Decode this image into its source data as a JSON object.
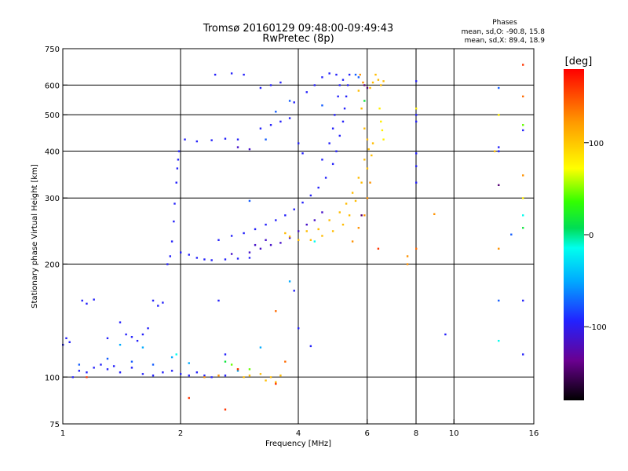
{
  "chart_data": {
    "type": "scatter",
    "title": "Tromsø 20160129 09:48:00-09:49:43",
    "subtitle": "RwPretec (8p)",
    "xlabel": "Frequency [MHz]",
    "ylabel": "Stationary phase Virtual Height [km]",
    "x_scale": "log",
    "y_scale": "log",
    "xlim": [
      1,
      16
    ],
    "ylim": [
      75,
      750
    ],
    "x_ticks": [
      1,
      2,
      4,
      6,
      8,
      10,
      16
    ],
    "x_tick_labels": [
      "1",
      "2",
      "4",
      "6",
      "8",
      "10",
      "16"
    ],
    "x_grid_lines": [
      2,
      4,
      6,
      8,
      10
    ],
    "y_ticks": [
      75,
      100,
      200,
      300,
      400,
      500,
      600,
      750
    ],
    "y_tick_labels": [
      "75",
      "100",
      "200",
      "300",
      "400",
      "500",
      "600",
      "750"
    ],
    "y_grid_lines": [
      100,
      200,
      300,
      400,
      500,
      600
    ],
    "grid": true,
    "info": {
      "heading": "Phases",
      "line_o": "mean, sd,O: -90.8, 15.8",
      "line_x": "mean, sd,X: 89.4, 18.9"
    },
    "colorbar": {
      "label": "[deg]",
      "range": [
        -180,
        180
      ],
      "ticks": [
        100,
        0,
        -100
      ],
      "tick_labels": [
        "100",
        "0",
        "-100"
      ]
    },
    "series": [
      {
        "phase": -95,
        "points": [
          [
            1.0,
            122
          ],
          [
            1.02,
            127
          ],
          [
            1.04,
            124
          ],
          [
            1.06,
            100
          ],
          [
            1.1,
            104
          ],
          [
            1.15,
            103
          ],
          [
            1.2,
            106
          ],
          [
            1.25,
            108
          ],
          [
            1.3,
            105
          ],
          [
            1.35,
            107
          ],
          [
            1.4,
            103
          ],
          [
            1.5,
            106
          ],
          [
            1.6,
            102
          ],
          [
            1.7,
            101
          ],
          [
            1.8,
            103
          ],
          [
            1.9,
            104
          ],
          [
            2.0,
            102
          ],
          [
            2.1,
            101
          ],
          [
            2.2,
            103
          ],
          [
            2.3,
            101
          ],
          [
            2.4,
            100
          ],
          [
            2.6,
            101
          ],
          [
            1.12,
            160
          ],
          [
            1.15,
            157
          ],
          [
            1.2,
            161
          ],
          [
            1.3,
            127
          ],
          [
            1.4,
            140
          ],
          [
            1.45,
            130
          ],
          [
            1.5,
            128
          ],
          [
            1.55,
            125
          ],
          [
            1.6,
            130
          ],
          [
            1.65,
            135
          ],
          [
            1.7,
            160
          ],
          [
            1.75,
            155
          ],
          [
            1.8,
            158
          ],
          [
            1.85,
            200
          ],
          [
            1.88,
            210
          ],
          [
            1.9,
            230
          ],
          [
            1.92,
            260
          ],
          [
            1.93,
            290
          ],
          [
            1.95,
            330
          ],
          [
            1.96,
            360
          ],
          [
            1.97,
            380
          ],
          [
            1.98,
            400
          ],
          [
            2.0,
            215
          ],
          [
            2.1,
            212
          ],
          [
            2.2,
            208
          ],
          [
            2.3,
            206
          ],
          [
            2.4,
            205
          ],
          [
            2.6,
            206
          ],
          [
            2.8,
            207
          ],
          [
            3.0,
            208
          ],
          [
            2.05,
            430
          ],
          [
            2.2,
            425
          ],
          [
            2.4,
            428
          ],
          [
            2.6,
            432
          ],
          [
            2.8,
            430
          ],
          [
            2.45,
            640
          ],
          [
            2.7,
            645
          ],
          [
            2.9,
            640
          ],
          [
            2.5,
            232
          ],
          [
            2.7,
            238
          ],
          [
            2.9,
            242
          ],
          [
            3.1,
            248
          ],
          [
            3.3,
            255
          ],
          [
            3.5,
            262
          ],
          [
            3.7,
            270
          ],
          [
            3.9,
            280
          ],
          [
            4.1,
            292
          ],
          [
            4.3,
            305
          ],
          [
            4.5,
            320
          ],
          [
            4.7,
            340
          ],
          [
            4.9,
            370
          ],
          [
            5.0,
            400
          ],
          [
            5.1,
            440
          ],
          [
            5.2,
            480
          ],
          [
            5.25,
            520
          ],
          [
            5.3,
            560
          ],
          [
            5.35,
            600
          ],
          [
            5.4,
            640
          ],
          [
            3.2,
            590
          ],
          [
            3.4,
            600
          ],
          [
            3.6,
            610
          ],
          [
            3.2,
            460
          ],
          [
            3.4,
            470
          ],
          [
            3.6,
            480
          ],
          [
            3.8,
            490
          ],
          [
            3.9,
            540
          ],
          [
            4.0,
            420
          ],
          [
            4.1,
            395
          ],
          [
            4.2,
            575
          ],
          [
            4.4,
            600
          ],
          [
            4.6,
            630
          ],
          [
            4.8,
            645
          ],
          [
            5.0,
            640
          ],
          [
            5.2,
            620
          ],
          [
            4.6,
            380
          ],
          [
            4.8,
            420
          ],
          [
            4.9,
            460
          ],
          [
            4.95,
            500
          ],
          [
            5.05,
            560
          ],
          [
            5.1,
            600
          ],
          [
            8.0,
            615
          ],
          [
            8.0,
            500
          ],
          [
            8.0,
            480
          ],
          [
            8.0,
            395
          ],
          [
            8.0,
            365
          ],
          [
            8.0,
            330
          ],
          [
            13.0,
            410
          ],
          [
            13.0,
            400
          ],
          [
            15.0,
            455
          ],
          [
            15.0,
            160
          ],
          [
            15.0,
            115
          ],
          [
            9.5,
            130
          ],
          [
            3.9,
            170
          ],
          [
            4.0,
            135
          ],
          [
            4.3,
            121
          ],
          [
            2.6,
            115
          ],
          [
            2.5,
            160
          ]
        ]
      },
      {
        "phase": -115,
        "points": [
          [
            2.7,
            213
          ],
          [
            3.0,
            215
          ],
          [
            3.2,
            220
          ],
          [
            3.4,
            225
          ],
          [
            3.6,
            228
          ],
          [
            3.8,
            235
          ],
          [
            4.0,
            245
          ],
          [
            4.2,
            255
          ],
          [
            4.4,
            262
          ],
          [
            4.6,
            275
          ],
          [
            3.1,
            225
          ],
          [
            3.3,
            232
          ],
          [
            2.8,
            410
          ],
          [
            3.0,
            405
          ]
        ]
      },
      {
        "phase": -75,
        "points": [
          [
            3.0,
            295
          ],
          [
            3.3,
            430
          ],
          [
            3.5,
            510
          ],
          [
            3.8,
            545
          ],
          [
            1.1,
            108
          ],
          [
            1.3,
            112
          ],
          [
            1.5,
            110
          ],
          [
            1.7,
            108
          ],
          [
            5.6,
            640
          ],
          [
            5.7,
            630
          ],
          [
            4.6,
            530
          ],
          [
            13.0,
            590
          ],
          [
            14.0,
            240
          ],
          [
            13.0,
            160
          ]
        ]
      },
      {
        "phase": -50,
        "points": [
          [
            1.9,
            113
          ],
          [
            2.1,
            109
          ],
          [
            1.6,
            120
          ],
          [
            2.8,
            104
          ],
          [
            3.2,
            120
          ],
          [
            1.4,
            122
          ],
          [
            3.8,
            180
          ]
        ]
      },
      {
        "phase": 105,
        "points": [
          [
            3.8,
            237
          ],
          [
            4.0,
            232
          ],
          [
            4.3,
            232
          ],
          [
            4.6,
            238
          ],
          [
            4.9,
            245
          ],
          [
            5.2,
            255
          ],
          [
            5.4,
            270
          ],
          [
            5.6,
            295
          ],
          [
            5.8,
            330
          ],
          [
            6.0,
            360
          ],
          [
            6.15,
            390
          ],
          [
            6.2,
            420
          ],
          [
            3.7,
            242
          ],
          [
            4.2,
            245
          ],
          [
            4.5,
            248
          ],
          [
            4.8,
            262
          ],
          [
            5.1,
            275
          ],
          [
            5.3,
            290
          ],
          [
            5.5,
            310
          ],
          [
            5.7,
            340
          ],
          [
            5.9,
            380
          ],
          [
            6.05,
            405
          ],
          [
            6.3,
            640
          ],
          [
            6.4,
            620
          ],
          [
            6.5,
            600
          ],
          [
            6.6,
            615
          ],
          [
            6.2,
            610
          ],
          [
            6.1,
            590
          ],
          [
            2.9,
            100
          ],
          [
            3.0,
            101
          ],
          [
            3.2,
            102
          ],
          [
            3.4,
            100
          ],
          [
            3.6,
            101
          ],
          [
            3.3,
            98
          ],
          [
            3.5,
            97
          ],
          [
            5.7,
            580
          ],
          [
            5.8,
            520
          ],
          [
            5.9,
            460
          ],
          [
            6.0,
            430
          ],
          [
            12.7,
            400
          ]
        ]
      },
      {
        "phase": 125,
        "points": [
          [
            5.5,
            230
          ],
          [
            5.7,
            250
          ],
          [
            5.9,
            270
          ],
          [
            6.0,
            300
          ],
          [
            6.1,
            330
          ],
          [
            5.75,
            640
          ],
          [
            5.85,
            610
          ],
          [
            2.3,
            100
          ],
          [
            2.5,
            101
          ],
          [
            2.8,
            105
          ],
          [
            7.6,
            210
          ],
          [
            7.6,
            200
          ],
          [
            13.0,
            220
          ],
          [
            15.0,
            345
          ],
          [
            8.9,
            272
          ]
        ]
      },
      {
        "phase": 80,
        "points": [
          [
            6.6,
            430
          ],
          [
            6.5,
            480
          ],
          [
            6.55,
            455
          ],
          [
            6.45,
            520
          ],
          [
            8.0,
            520
          ],
          [
            13.0,
            500
          ],
          [
            15.0,
            300
          ]
        ]
      },
      {
        "phase": 45,
        "points": [
          [
            3.0,
            105
          ],
          [
            2.7,
            108
          ],
          [
            15.0,
            470
          ]
        ]
      },
      {
        "phase": 15,
        "points": [
          [
            2.6,
            110
          ],
          [
            5.9,
            545
          ],
          [
            15.0,
            250
          ]
        ]
      },
      {
        "phase": -15,
        "points": [
          [
            1.95,
            115
          ],
          [
            4.4,
            230
          ],
          [
            13.0,
            125
          ],
          [
            15.0,
            270
          ]
        ]
      },
      {
        "phase": 160,
        "points": [
          [
            15.0,
            680
          ],
          [
            2.1,
            88
          ],
          [
            2.6,
            82
          ],
          [
            3.5,
            96
          ],
          [
            2.8,
            105
          ],
          [
            1.15,
            100
          ],
          [
            6.4,
            220
          ]
        ]
      },
      {
        "phase": 140,
        "points": [
          [
            15.0,
            560
          ],
          [
            8.0,
            220
          ],
          [
            3.5,
            150
          ],
          [
            3.7,
            110
          ]
        ]
      },
      {
        "phase": -145,
        "points": [
          [
            5.9,
            600
          ],
          [
            6.0,
            590
          ],
          [
            5.8,
            270
          ],
          [
            13.0,
            325
          ]
        ]
      }
    ]
  }
}
